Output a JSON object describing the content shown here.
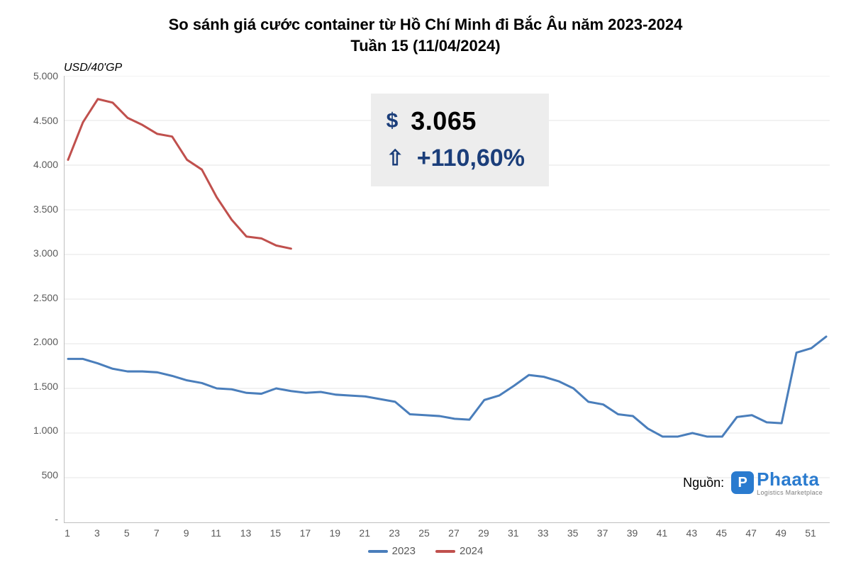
{
  "chart": {
    "type": "line",
    "title_line1": "So sánh giá cước container từ Hồ Chí Minh đi Bắc Âu năm 2023-2024",
    "title_line2": "Tuần 15 (11/04/2024)",
    "title_fontsize": 22,
    "ylabel": "USD/40'GP",
    "ylabel_fontsize": 16,
    "background_color": "#ffffff",
    "grid_color": "#e6e6e6",
    "axis_color": "#bfbfbf",
    "tick_color": "#595959",
    "tick_fontsize": 14,
    "ylim_min": 0,
    "ylim_max": 5000,
    "ytick_step": 500,
    "yticks": [
      "-",
      "500",
      "1.000",
      "1.500",
      "2.000",
      "2.500",
      "3.000",
      "3.500",
      "4.000",
      "4.500",
      "5.000"
    ],
    "xticks": [
      1,
      3,
      5,
      7,
      9,
      11,
      13,
      15,
      17,
      19,
      21,
      23,
      25,
      27,
      29,
      31,
      33,
      35,
      37,
      39,
      41,
      43,
      45,
      47,
      49,
      51
    ],
    "x_count": 52,
    "line_width": 3,
    "series": [
      {
        "name": "2023",
        "color": "#4a7ebb",
        "values": [
          1830,
          1830,
          1780,
          1720,
          1690,
          1690,
          1680,
          1640,
          1590,
          1560,
          1500,
          1490,
          1450,
          1440,
          1500,
          1470,
          1450,
          1460,
          1430,
          1420,
          1410,
          1380,
          1350,
          1210,
          1200,
          1190,
          1160,
          1150,
          1370,
          1420,
          1530,
          1650,
          1630,
          1580,
          1500,
          1350,
          1320,
          1210,
          1190,
          1050,
          960,
          960,
          1000,
          960,
          960,
          1180,
          1200,
          1120,
          1110,
          1900,
          1950,
          2080
        ]
      },
      {
        "name": "2024",
        "color": "#c0504d",
        "values": [
          4060,
          4480,
          4740,
          4700,
          4530,
          4450,
          4350,
          4320,
          4060,
          3950,
          3640,
          3390,
          3200,
          3180,
          3100,
          3065
        ]
      }
    ],
    "legend_fontsize": 15
  },
  "info": {
    "box_bg": "#ededed",
    "price_symbol": "$",
    "price_value": "3.065",
    "price_fontsize": 36,
    "change_symbol": "⇧",
    "change_value": "+110,60%",
    "change_fontsize": 34,
    "accent_color": "#1b3e7a",
    "icon_fontsize": 30
  },
  "source": {
    "label": "Nguồn:",
    "logo_badge": "P",
    "logo_name": "Phaata",
    "logo_sub": "Logistics Marketplace",
    "brand_color": "#2a7bcf"
  }
}
